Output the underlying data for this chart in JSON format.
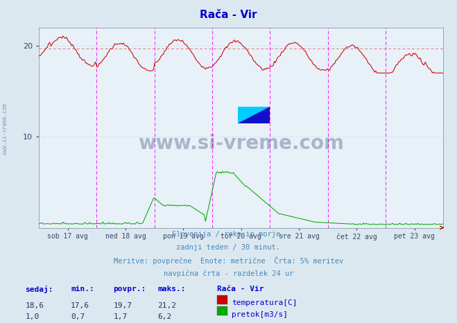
{
  "title": "Rača - Vir",
  "title_color": "#0000cc",
  "bg_color": "#dce8f0",
  "plot_bg_color": "#e8f0f8",
  "grid_color": "#c8d0dc",
  "x_labels": [
    "sob 17 avg",
    "ned 18 avg",
    "pon 19 avg",
    "tor 20 avg",
    "sre 21 avg",
    "čet 22 avg",
    "pet 23 avg"
  ],
  "x_ticks_pos": [
    0.5,
    1.5,
    2.5,
    3.5,
    4.5,
    5.5,
    6.5
  ],
  "n_days": 7,
  "y_ticks": [
    10,
    20
  ],
  "y_lim_max": 22.0,
  "temp_color": "#cc0000",
  "flow_color": "#00aa00",
  "avg_line_color": "#dd6666",
  "vline_color": "#ff00ff",
  "subtitle_lines": [
    "Slovenija / reke in morje.",
    "zadnji teden / 30 minut.",
    "Meritve: povprečne  Enote: metrične  Črta: 5% meritev",
    "navpična črta - razdelek 24 ur"
  ],
  "subtitle_color": "#4488bb",
  "footer_color": "#0000cc",
  "temp_sedaj": "18,6",
  "temp_min": "17,6",
  "temp_povpr": "19,7",
  "temp_maks": "21,2",
  "flow_sedaj": "1,0",
  "flow_min": "0,7",
  "flow_povpr": "1,7",
  "flow_maks": "6,2",
  "temp_avg_line": 19.7,
  "watermark": "www.si-vreme.com",
  "watermark_color": "#1a3060",
  "watermark_alpha": 0.3,
  "left_label": "www.si-vreme.com"
}
